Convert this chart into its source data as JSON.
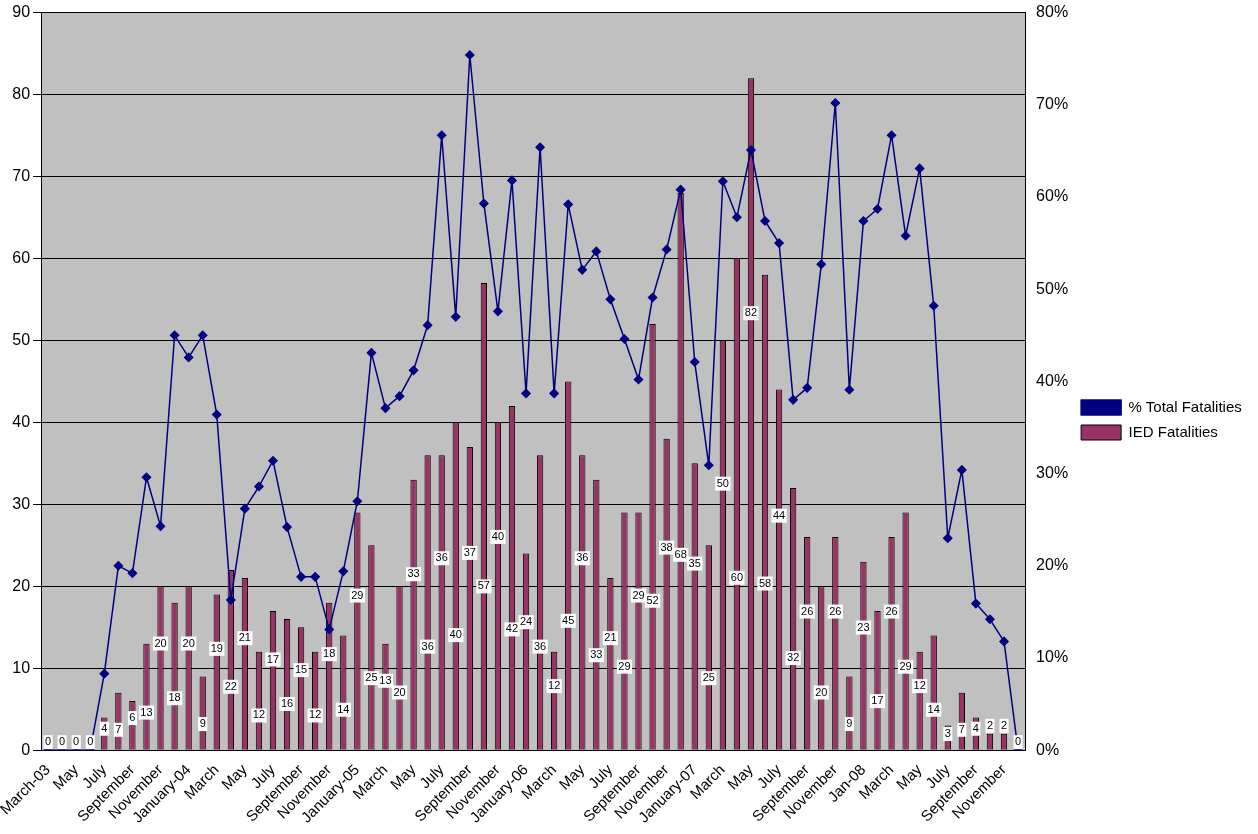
{
  "chart_data": {
    "type": "bar",
    "categories": [
      "March-03",
      null,
      "May",
      null,
      "July",
      null,
      "September",
      null,
      "November",
      null,
      "January-04",
      null,
      "March",
      null,
      "May",
      null,
      "July",
      null,
      "September",
      null,
      "November",
      null,
      "January-05",
      null,
      "March",
      null,
      "May",
      null,
      "July",
      null,
      "September",
      null,
      "November",
      null,
      "January-06",
      null,
      "March",
      null,
      "May",
      null,
      "July",
      null,
      "September",
      null,
      "November",
      null,
      "January-07",
      null,
      "March",
      null,
      "May",
      null,
      "July",
      null,
      "September",
      null,
      "November",
      null,
      "Jan-08",
      null,
      "March",
      null,
      "May",
      null,
      "July",
      null,
      "September",
      null,
      "November",
      null
    ],
    "series": [
      {
        "name": "IED Fatalities",
        "color": "#993366",
        "values": [
          0,
          0,
          0,
          0,
          4,
          7,
          6,
          13,
          20,
          18,
          20,
          9,
          19,
          22,
          21,
          12,
          17,
          16,
          15,
          12,
          18,
          14,
          29,
          25,
          13,
          20,
          33,
          36,
          36,
          40,
          37,
          57,
          40,
          42,
          24,
          36,
          12,
          45,
          36,
          33,
          21,
          29,
          29,
          52,
          38,
          68,
          35,
          25,
          50,
          60,
          82,
          58,
          44,
          32,
          26,
          20,
          26,
          9,
          23,
          17,
          26,
          29,
          12,
          14,
          3,
          7,
          4,
          2,
          2,
          0
        ],
        "value_labels": [
          "0",
          "0",
          "0",
          "0",
          "4",
          "7",
          "6",
          "13",
          "20",
          "18",
          "20",
          "9",
          "19",
          "22",
          "21",
          "12",
          "17",
          "16",
          "15",
          "12",
          "18",
          "14",
          "29",
          "25",
          "13",
          "20",
          "33",
          "36",
          "36",
          "40",
          "37",
          "57",
          "40",
          "42",
          "24",
          "36",
          "12",
          "45",
          "36",
          "33",
          "21",
          "29",
          "29",
          "52",
          "38",
          "68",
          "35",
          "25",
          "50",
          "60",
          "82",
          "58",
          "44",
          "32",
          "26",
          "20",
          "26",
          "9",
          "23",
          "17",
          "26",
          "29",
          "12",
          "14",
          "3",
          "7",
          "4",
          "2",
          "2",
          "0"
        ]
      },
      {
        "name": "% Total Fatalities",
        "type": "line",
        "axis": "y2",
        "color": "#000080",
        "marker": "diamond",
        "values": [
          0,
          0,
          0,
          0,
          8.3,
          20,
          19.2,
          29.6,
          24.3,
          45,
          42.6,
          45,
          36.4,
          16.3,
          26.2,
          28.6,
          31.4,
          24.2,
          18.8,
          18.8,
          13.1,
          19.4,
          27,
          43.1,
          37.1,
          38.4,
          41.2,
          46.1,
          66.7,
          47,
          75.4,
          59.3,
          47.6,
          61.8,
          38.7,
          65.4,
          38.7,
          59.2,
          52.1,
          54.1,
          48.9,
          44.6,
          40.2,
          49.1,
          54.3,
          60.8,
          42.1,
          30.9,
          61.7,
          57.8,
          65.1,
          57.4,
          55,
          38,
          39.3,
          52.7,
          70.2,
          39.1,
          57.4,
          58.7,
          66.7,
          55.8,
          63.1,
          48.2,
          23,
          30.4,
          15.9,
          14.2,
          11.8,
          0
        ]
      }
    ],
    "ylim": [
      0,
      90
    ],
    "yticks": [
      0,
      10,
      20,
      30,
      40,
      50,
      60,
      70,
      80,
      90
    ],
    "y2lim": [
      0,
      80
    ],
    "y2ticks": [
      {
        "value": 0,
        "label": "0%"
      },
      {
        "value": 10,
        "label": "10%"
      },
      {
        "value": 20,
        "label": "20%"
      },
      {
        "value": 30,
        "label": "30%"
      },
      {
        "value": 40,
        "label": "40%"
      },
      {
        "value": 50,
        "label": "50%"
      },
      {
        "value": 60,
        "label": "60%"
      },
      {
        "value": 70,
        "label": "70%"
      },
      {
        "value": 80,
        "label": "80%"
      }
    ],
    "grid": "y",
    "legend": "right"
  }
}
